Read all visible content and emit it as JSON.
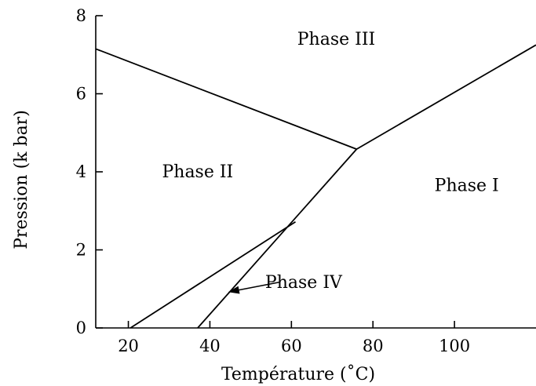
{
  "chart_data": {
    "type": "line",
    "title": "",
    "xlabel": "Température (˚C)",
    "ylabel": "Pression (k bar)",
    "xlim": [
      12,
      120
    ],
    "ylim": [
      0,
      8
    ],
    "x_ticks": [
      20,
      40,
      60,
      80,
      100
    ],
    "y_ticks": [
      0,
      2,
      4,
      6,
      8
    ],
    "grid": false,
    "legend": "none",
    "phase_boundaries": [
      {
        "points": [
          [
            12,
            7.15
          ],
          [
            76,
            4.58
          ]
        ]
      },
      {
        "points": [
          [
            76,
            4.58
          ],
          [
            120,
            7.25
          ]
        ]
      },
      {
        "points": [
          [
            37,
            0
          ],
          [
            76,
            4.58
          ]
        ]
      },
      {
        "points": [
          [
            20.5,
            0
          ],
          [
            61,
            2.72
          ]
        ]
      }
    ],
    "region_labels": [
      {
        "text": "Phase III",
        "x": 71,
        "y": 7.4
      },
      {
        "text": "Phase II",
        "x": 37,
        "y": 4.0
      },
      {
        "text": "Phase I",
        "x": 103,
        "y": 3.65
      },
      {
        "text": "Phase IV",
        "x": 63,
        "y": 1.17
      }
    ],
    "annotations": [
      {
        "text": "Phase IV",
        "arrow_from": [
          57,
          1.17
        ],
        "arrow_to": [
          44.5,
          0.92
        ]
      }
    ],
    "colors": {
      "line": "#000000",
      "background": "#ffffff"
    }
  }
}
